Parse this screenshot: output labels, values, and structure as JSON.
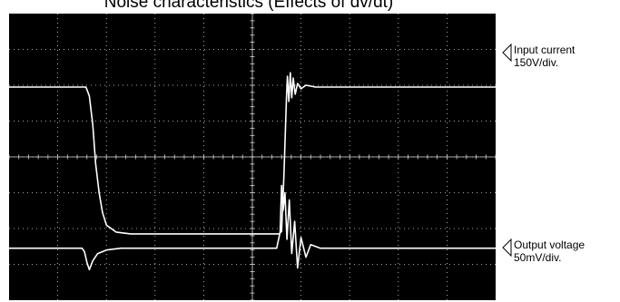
{
  "title": "Noise characteristics  (Effects of dv/dt)",
  "colors": {
    "screen": "#000000",
    "grid": "#d8d8d8",
    "trace": "#ffffff",
    "text": "#000000"
  },
  "chart_data": {
    "type": "line",
    "title": "Noise characteristics  (Effects of dv/dt)",
    "grid": true,
    "divisions": {
      "x": 10,
      "y": 8
    },
    "series": [
      {
        "name": "Input current",
        "scale": "150V/div.",
        "x": [
          0,
          1.58,
          1.65,
          1.72,
          1.78,
          1.85,
          1.92,
          2.0,
          2.2,
          2.5,
          3.0,
          4.0,
          5.55,
          5.6,
          5.65,
          5.7,
          5.72,
          5.75,
          5.78,
          5.81,
          5.84,
          5.88,
          5.93,
          6.0,
          6.1,
          6.3,
          7.0,
          8.0,
          9.0,
          10.0
        ],
        "y": [
          5.95,
          5.95,
          5.7,
          4.9,
          3.8,
          3.0,
          2.45,
          2.1,
          1.9,
          1.85,
          1.85,
          1.85,
          1.85,
          1.92,
          3.5,
          5.6,
          6.25,
          5.55,
          6.35,
          5.65,
          6.2,
          5.75,
          6.05,
          5.9,
          6.0,
          5.95,
          5.95,
          5.95,
          5.95,
          5.95
        ]
      },
      {
        "name": "Output voltage",
        "scale": "50mV/div.",
        "x": [
          0,
          1.5,
          1.55,
          1.6,
          1.65,
          1.72,
          1.82,
          2.0,
          2.3,
          3.0,
          4.0,
          5.5,
          5.57,
          5.6,
          5.63,
          5.67,
          5.71,
          5.76,
          5.81,
          5.87,
          5.93,
          6.0,
          6.1,
          6.2,
          6.4,
          7.0,
          8.0,
          9.0,
          10.0
        ],
        "y": [
          1.45,
          1.45,
          1.35,
          1.05,
          0.85,
          1.1,
          1.3,
          1.4,
          1.45,
          1.45,
          1.45,
          1.45,
          1.9,
          3.2,
          2.5,
          3.0,
          1.7,
          2.8,
          1.3,
          2.2,
          0.9,
          1.75,
          1.2,
          1.55,
          1.45,
          1.45,
          1.45,
          1.45,
          1.45
        ]
      }
    ]
  }
}
